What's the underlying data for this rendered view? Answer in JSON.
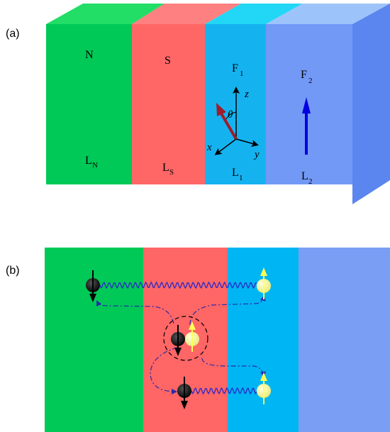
{
  "panels": {
    "a": {
      "label": "(a)"
    },
    "b": {
      "label": "(b)"
    }
  },
  "layers": [
    {
      "id": "N",
      "name_main": "N",
      "name_sub": "",
      "len_main": "L",
      "len_sub": "N",
      "front": "#00c957",
      "top": "#22dd66",
      "flat": "#00c957"
    },
    {
      "id": "S",
      "name_main": "S",
      "name_sub": "",
      "len_main": "L",
      "len_sub": "S",
      "front": "#ff6666",
      "top": "#ff8080",
      "flat": "#ff6666"
    },
    {
      "id": "F1",
      "name_main": "F",
      "name_sub": "1",
      "len_main": "L",
      "len_sub": "1",
      "front": "#14b3f0",
      "top": "#22d6f5",
      "flat": "#00b5f3"
    },
    {
      "id": "F2",
      "name_main": "F",
      "name_sub": "2",
      "len_main": "L",
      "len_sub": "2",
      "front": "#7299f5",
      "top": "#9dc4fa",
      "flat": "#7a9ef3"
    }
  ],
  "side_color": "#5b86f0",
  "axes": {
    "x": "x",
    "y": "y",
    "z": "z",
    "theta": "θ"
  },
  "colors": {
    "magnetization_f1": "#a01c2c",
    "magnetization_f2": "#0000e0",
    "wavy_line": "#2828c8",
    "trajectory": "#2a2aa8",
    "electron_dark": "#111111",
    "electron_light": "#f4f48c",
    "spin_light": "#ffff55"
  },
  "icons": [
    "electron-spin-down",
    "electron-spin-up",
    "cooper-pair",
    "magnetization-arrow"
  ]
}
